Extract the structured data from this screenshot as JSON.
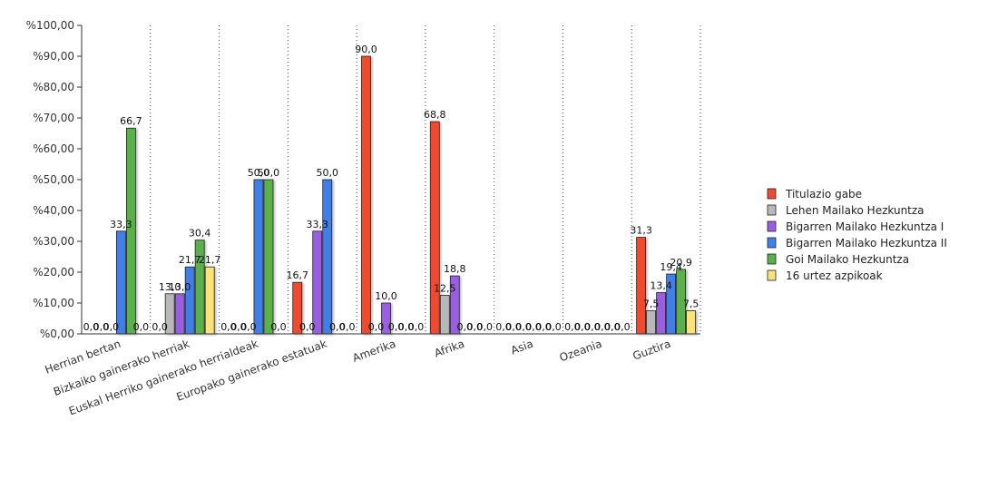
{
  "chart_data": {
    "type": "bar",
    "title": "",
    "xlabel": "",
    "ylabel": "",
    "ylim": [
      0,
      100
    ],
    "y_ticks": [
      "%0,00",
      "%10,00",
      "%20,00",
      "%30,00",
      "%40,00",
      "%50,00",
      "%60,00",
      "%70,00",
      "%80,00",
      "%90,00",
      "%100,00"
    ],
    "grid": "vertical dotted separators between categories",
    "legend_position": "right",
    "categories": [
      "Herrian bertan",
      "Bizkaiko gainerako herriak",
      "Euskal Herriko gainerako herrialdeak",
      "Europako gainerako estatuak",
      "Amerika",
      "Afrika",
      "Asia",
      "Ozeania",
      "Guztira"
    ],
    "series": [
      {
        "name": "Titulazio gabe",
        "color": "#f04a2f",
        "values": [
          0,
          0,
          0,
          16.7,
          90,
          68.8,
          0,
          0,
          31.3
        ],
        "labels": [
          "0,0",
          "0,0",
          "0,0",
          "16,7",
          "90,0",
          "68,8",
          "0,0",
          "0,0",
          "31,3"
        ]
      },
      {
        "name": "Lehen Mailako Hezkuntza",
        "color": "#b8b8b8",
        "values": [
          0,
          13,
          0,
          0,
          0,
          12.5,
          0,
          0,
          7.5
        ],
        "labels": [
          "0,0",
          "13,0",
          "0,0",
          "0,0",
          "0,0",
          "12,5",
          "0,0",
          "0,0",
          "7,5"
        ]
      },
      {
        "name": "Bigarren Mailako Hezkuntza I",
        "color": "#9a5ee0",
        "values": [
          0,
          13,
          0,
          33.3,
          10,
          18.8,
          0,
          0,
          13.4
        ],
        "labels": [
          "0,0",
          "13,0",
          "0,0",
          "33,3",
          "10,0",
          "18,8",
          "0,0",
          "0,0",
          "13,4"
        ]
      },
      {
        "name": "Bigarren Mailako Hezkuntza II",
        "color": "#3f7fe8",
        "values": [
          33.3,
          21.7,
          50,
          50,
          0,
          0,
          0,
          0,
          19.4
        ],
        "labels": [
          "33,3",
          "21,7",
          "50,0",
          "50,0",
          "0,0",
          "0,0",
          "0,0",
          "0,0",
          "19,4"
        ]
      },
      {
        "name": "Goi Mailako Hezkuntza",
        "color": "#5ab04a",
        "values": [
          66.7,
          30.4,
          50,
          0,
          0,
          0,
          0,
          0,
          20.9
        ],
        "labels": [
          "66,7",
          "30,4",
          "50,0",
          "0,0",
          "0,0",
          "0,0",
          "0,0",
          "0,0",
          "20,9"
        ]
      },
      {
        "name": "16 urtez azpikoak",
        "color": "#fbe37a",
        "values": [
          0,
          21.7,
          0,
          0,
          0,
          0,
          0,
          0,
          7.5
        ],
        "labels": [
          "0,0",
          "21,7",
          "0,0",
          "0,0",
          "0,0",
          "0,0",
          "0,0",
          "0,0",
          "7,5"
        ]
      }
    ]
  }
}
